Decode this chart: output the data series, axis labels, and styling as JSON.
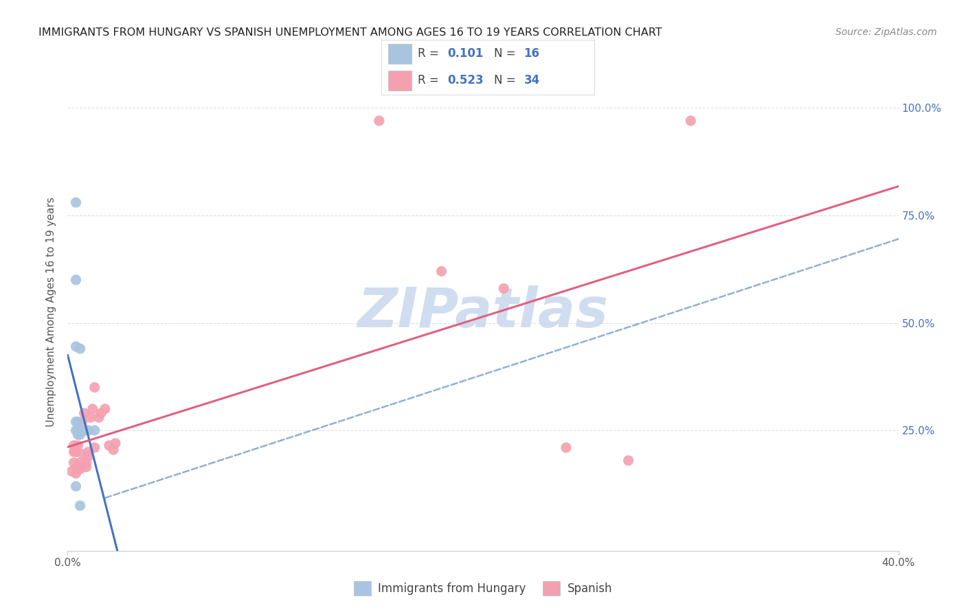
{
  "title": "IMMIGRANTS FROM HUNGARY VS SPANISH UNEMPLOYMENT AMONG AGES 16 TO 19 YEARS CORRELATION CHART",
  "source": "Source: ZipAtlas.com",
  "ylabel": "Unemployment Among Ages 16 to 19 years",
  "xlim": [
    0.0,
    0.4
  ],
  "ylim": [
    -0.03,
    1.08
  ],
  "xticks": [
    0.0,
    0.4
  ],
  "xticklabels": [
    "0.0%",
    "40.0%"
  ],
  "yticks": [
    0.0,
    0.25,
    0.5,
    0.75,
    1.0
  ],
  "yticklabels_right": [
    "",
    "25.0%",
    "50.0%",
    "75.0%",
    "100.0%"
  ],
  "R_hungary": 0.101,
  "N_hungary": 16,
  "R_spanish": 0.523,
  "N_spanish": 34,
  "hungary_x": [
    0.004,
    0.004,
    0.004,
    0.004,
    0.004,
    0.005,
    0.005,
    0.005,
    0.006,
    0.006,
    0.007,
    0.009,
    0.01,
    0.013,
    0.004,
    0.006
  ],
  "hungary_y": [
    0.78,
    0.6,
    0.445,
    0.27,
    0.25,
    0.27,
    0.25,
    0.24,
    0.24,
    0.44,
    0.25,
    0.25,
    0.25,
    0.25,
    0.12,
    0.075
  ],
  "spanish_x": [
    0.002,
    0.003,
    0.003,
    0.003,
    0.004,
    0.004,
    0.004,
    0.005,
    0.005,
    0.006,
    0.006,
    0.007,
    0.007,
    0.008,
    0.009,
    0.009,
    0.01,
    0.01,
    0.011,
    0.012,
    0.013,
    0.013,
    0.015,
    0.016,
    0.018,
    0.02,
    0.022,
    0.023,
    0.15,
    0.18,
    0.21,
    0.24,
    0.27,
    0.3
  ],
  "spanish_y": [
    0.155,
    0.175,
    0.2,
    0.215,
    0.15,
    0.162,
    0.2,
    0.215,
    0.165,
    0.175,
    0.16,
    0.195,
    0.27,
    0.29,
    0.175,
    0.165,
    0.2,
    0.19,
    0.28,
    0.3,
    0.35,
    0.21,
    0.28,
    0.29,
    0.3,
    0.215,
    0.205,
    0.22,
    0.97,
    0.62,
    0.58,
    0.21,
    0.18,
    0.97
  ],
  "hungary_color": "#a8c4e0",
  "spanish_color": "#f4a0b0",
  "hungary_line_color": "#4472c4",
  "spanish_line_color": "#e06080",
  "dashed_line_color": "#90b0d0",
  "watermark_color": "#d0ddf0",
  "background_color": "#ffffff",
  "grid_color": "#e0e0e0",
  "tick_color": "#4472c4",
  "label_color": "#555555"
}
